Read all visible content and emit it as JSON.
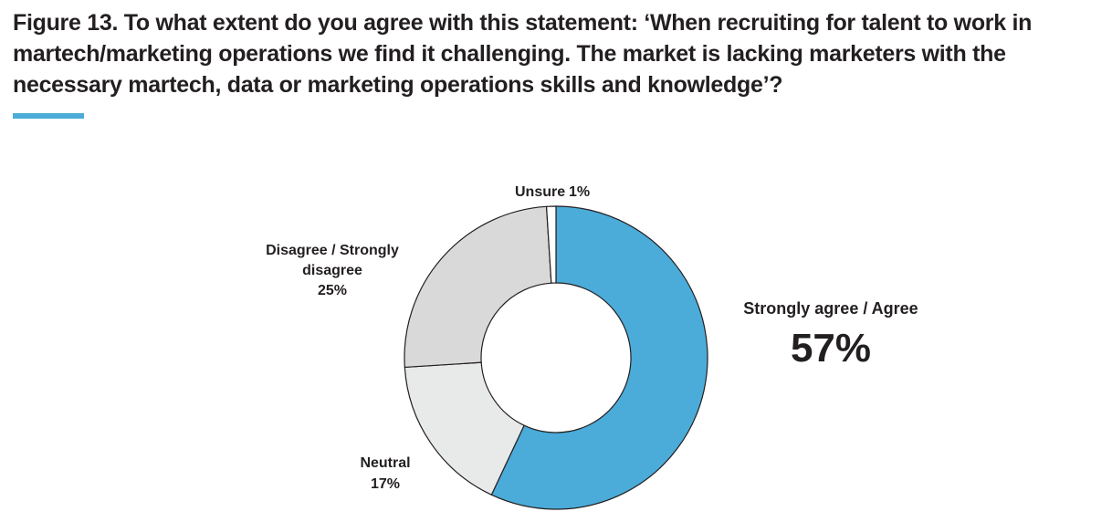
{
  "chart_data": {
    "type": "donut",
    "title": "Figure 13. To what extent do you agree with this statement: ‘When recruiting for talent to work in martech/marketing operations we find it challenging. The market is lacking marketers with the necessary martech, data or marketing operations skills and knowledge’?",
    "categories": [
      "Strongly agree / Agree",
      "Neutral",
      "Disagree / Strongly disagree",
      "Unsure"
    ],
    "values": [
      57,
      17,
      25,
      1
    ],
    "value_labels": [
      "57%",
      "17%",
      "25%",
      "1%"
    ],
    "colors": [
      "#4babd9",
      "#e8e9e9",
      "#d9d9d9",
      "#ffffff"
    ]
  }
}
